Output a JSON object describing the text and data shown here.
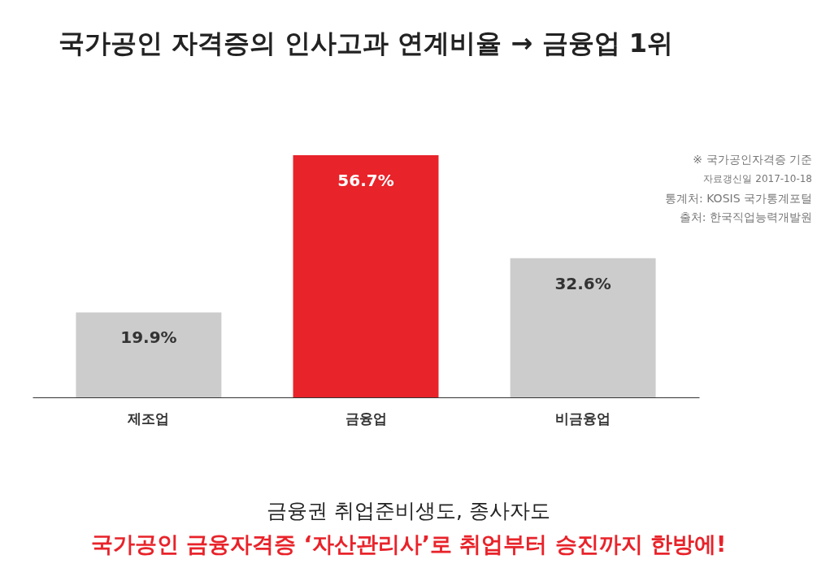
{
  "chart_data": {
    "type": "bar",
    "title": "국가공인 자격증의 인사고과 연계비율 → 금융업 1위",
    "categories": [
      "제조업",
      "금융업",
      "비금융업"
    ],
    "values": [
      19.9,
      56.7,
      32.6
    ],
    "colors": [
      "#cccccc",
      "#e8232a",
      "#cccccc"
    ],
    "data_labels": true,
    "value_labels": [
      "19.9%",
      "56.7%",
      "32.6%"
    ],
    "annotations": [
      "※ 국가공인자격증 기준",
      "자료갱신일 2017-10-18",
      "통계처: KOSIS 국가통계포털",
      "출처: 한국직업능력개발원",
      "금융권 취업준비생도, 종사자도",
      "국가공인 금융자격증 ‘자산관리사’로 취업부터 승진까지 한방에!"
    ]
  }
}
